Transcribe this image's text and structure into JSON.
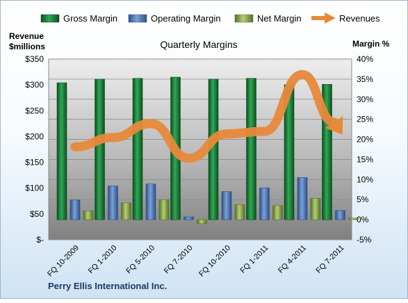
{
  "chart_data": {
    "type": "bar",
    "title": "Quarterly Margins",
    "company": "Perry Ellis International  Inc.",
    "left_axis_title": [
      "Revenue",
      "$millions"
    ],
    "right_axis_title": "Margin  %",
    "categories": [
      "FQ 10-2009",
      "FQ 1-2010",
      "FQ 5-2010",
      "FQ 7-2010",
      "FQ 10-2010",
      "FQ 1-2011",
      "FQ 4-2011",
      "FQ 7-2011"
    ],
    "left_axis": {
      "min": 0,
      "max": 350,
      "step": 50,
      "tick_labels": [
        "$-",
        "$50",
        "$100",
        "$150",
        "$200",
        "$250",
        "$300",
        "$350"
      ]
    },
    "right_axis": {
      "min": -5,
      "max": 40,
      "step": 5,
      "tick_labels": [
        "-5%",
        "0%",
        "5%",
        "10%",
        "15%",
        "20%",
        "25%",
        "30%",
        "35%",
        "40%"
      ]
    },
    "series": [
      {
        "name": "Gross Margin",
        "axis": "right",
        "color": "#1f8a3c",
        "values": [
          34.1,
          35.0,
          35.2,
          35.5,
          35.0,
          35.2,
          33.6,
          33.7
        ]
      },
      {
        "name": "Operating Margin",
        "axis": "right",
        "color": "#4f7fbf",
        "values": [
          4.9,
          8.4,
          8.9,
          0.7,
          7.0,
          7.9,
          10.5,
          2.3
        ]
      },
      {
        "name": "Net Margin",
        "axis": "right",
        "color": "#8fb04a",
        "values": [
          2.2,
          4.2,
          5.0,
          -1.0,
          3.7,
          3.5,
          5.3,
          0.4
        ]
      },
      {
        "name": "Revenues",
        "axis": "left",
        "type": "arrow-line",
        "color": "#e8893a",
        "values": [
          180,
          198,
          225,
          158,
          205,
          210,
          320,
          210
        ]
      }
    ],
    "legend_position": "top",
    "grid": true
  }
}
